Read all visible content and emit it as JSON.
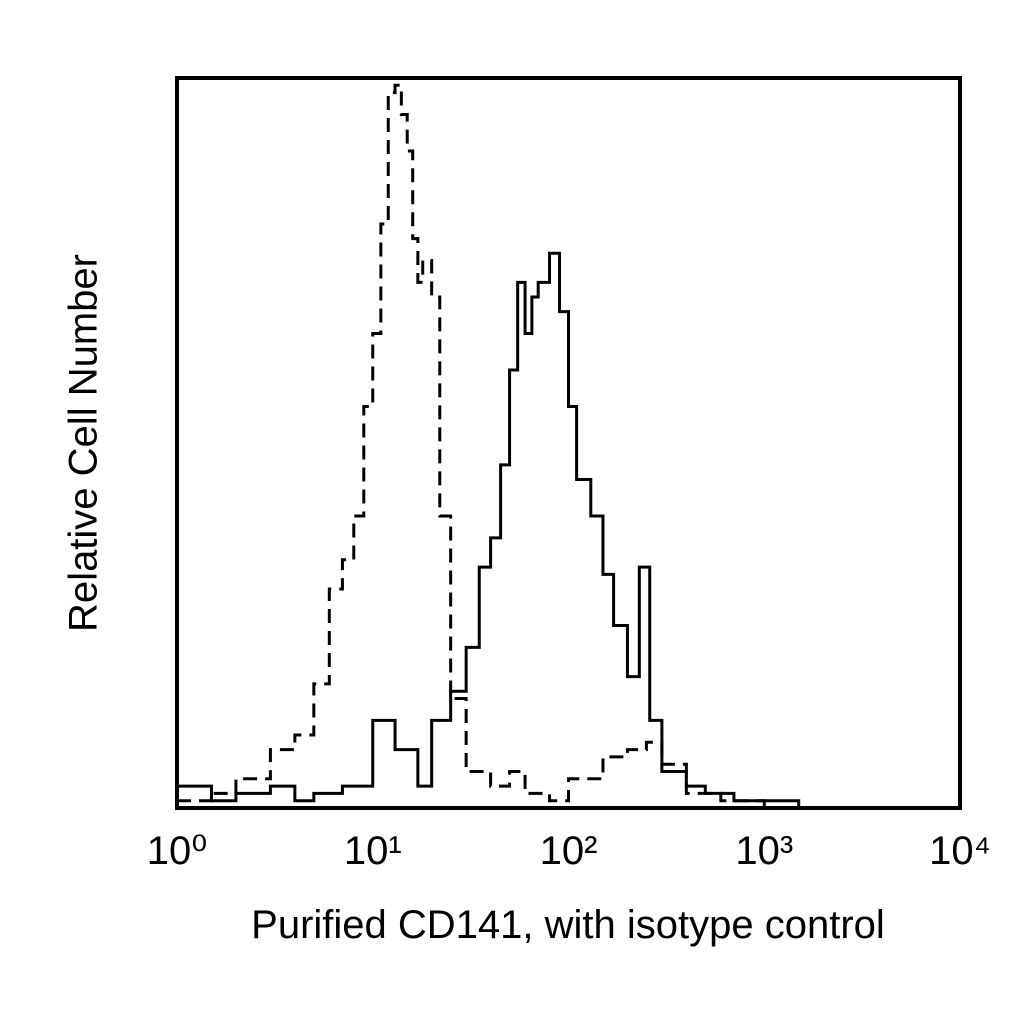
{
  "chart_data": {
    "type": "line",
    "xlabel": "Purified CD141, with isotype control",
    "ylabel": "Relative Cell Number",
    "xscale": "log",
    "xlim": [
      1,
      10000
    ],
    "xticks": [
      {
        "value": 1,
        "label": "10⁰"
      },
      {
        "value": 10,
        "label": "10¹"
      },
      {
        "value": 100,
        "label": "10²"
      },
      {
        "value": 1000,
        "label": "10³"
      },
      {
        "value": 10000,
        "label": "10⁴"
      }
    ],
    "ylim": [
      0,
      100
    ],
    "grid": false,
    "series": [
      {
        "color": "#000000",
        "line_style": "solid",
        "x": [
          1,
          1.5,
          2,
          3,
          4,
          5,
          7,
          10,
          13,
          17,
          20,
          25,
          30,
          35,
          40,
          45,
          50,
          55,
          60,
          65,
          70,
          80,
          90,
          100,
          110,
          130,
          150,
          170,
          200,
          230,
          260,
          300,
          400,
          500,
          700,
          1000,
          1500,
          10000
        ],
        "values": [
          3,
          1,
          2,
          3,
          1,
          2,
          3,
          12,
          8,
          3,
          12,
          16,
          22,
          33,
          37,
          47,
          60,
          72,
          65,
          70,
          72,
          76,
          68,
          55,
          45,
          40,
          32,
          25,
          18,
          33,
          12,
          5,
          3,
          2,
          1,
          1,
          0,
          0
        ]
      },
      {
        "color": "#000000",
        "line_style": "dashed",
        "x": [
          1,
          1.5,
          2,
          3,
          4,
          5,
          6,
          7,
          8,
          9,
          10,
          11,
          12,
          13,
          14,
          15,
          16,
          17,
          18,
          20,
          22,
          25,
          30,
          40,
          50,
          60,
          80,
          100,
          150,
          200,
          250,
          300,
          400,
          600,
          1000,
          10000
        ],
        "values": [
          1,
          2,
          4,
          8,
          10,
          17,
          30,
          34,
          40,
          55,
          65,
          80,
          98,
          99,
          95,
          90,
          78,
          72,
          75,
          70,
          40,
          15,
          5,
          3,
          5,
          2,
          1,
          4,
          7,
          8,
          9,
          6,
          2,
          1,
          0,
          0
        ]
      }
    ]
  }
}
